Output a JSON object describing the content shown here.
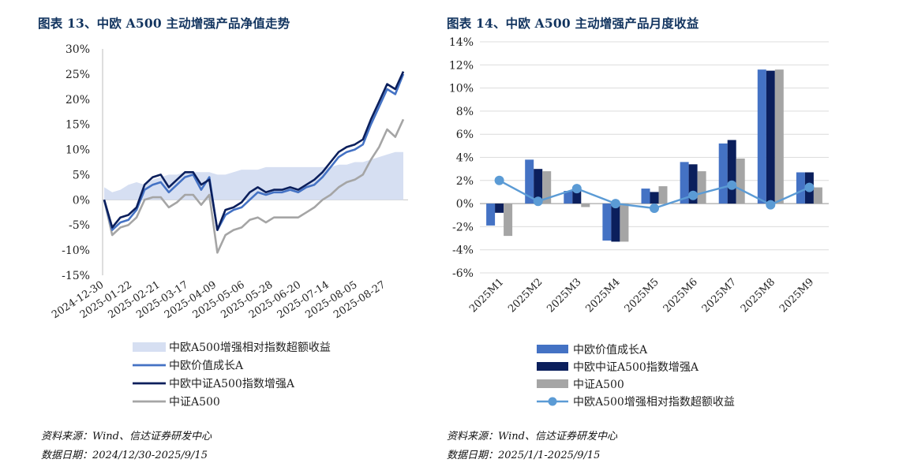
{
  "left_figure": {
    "title": "图表 13、中欧 A500 主动增强产品净值走势",
    "source": "资料来源：Wind、信达证券研发中心",
    "date_range": "数据日期：2024/12/30-2025/9/15"
  },
  "right_figure": {
    "title": "图表 14、中欧 A500 主动增强产品月度收益",
    "source": "资料来源：Wind、信达证券研发中心",
    "date_range": "数据日期：2025/1/1-2025/9/15"
  },
  "colors": {
    "title": "#12345f",
    "growth": "#4472c4",
    "enhanced": "#0b1f5c",
    "index": "#a5a5a5",
    "excess_area": "#d6dff2",
    "excess_line": "#5b9bd5"
  },
  "chart_data": [
    {
      "type": "line",
      "ylim": [
        -15,
        30
      ],
      "yticks": [
        -15,
        -10,
        -5,
        0,
        5,
        10,
        15,
        20,
        25,
        30
      ],
      "ytick_labels": [
        "-15%",
        "-10%",
        "-5%",
        "0%",
        "5%",
        "10%",
        "15%",
        "20%",
        "25%",
        "30%"
      ],
      "xtick_labels": [
        "2024-12-30",
        "2025-01-22",
        "2025-02-21",
        "2025-03-17",
        "2025-04-09",
        "2025-05-06",
        "2025-05-28",
        "2025-06-20",
        "2025-07-14",
        "2025-08-05",
        "2025-08-27"
      ],
      "x": [
        "2024-12-30",
        "2025-01-06",
        "2025-01-13",
        "2025-01-20",
        "2025-01-27",
        "2025-02-05",
        "2025-02-12",
        "2025-02-19",
        "2025-02-26",
        "2025-03-05",
        "2025-03-12",
        "2025-03-19",
        "2025-03-26",
        "2025-04-02",
        "2025-04-07",
        "2025-04-14",
        "2025-04-21",
        "2025-04-28",
        "2025-05-07",
        "2025-05-14",
        "2025-05-21",
        "2025-05-28",
        "2025-06-04",
        "2025-06-11",
        "2025-06-18",
        "2025-06-25",
        "2025-07-02",
        "2025-07-09",
        "2025-07-16",
        "2025-07-23",
        "2025-07-30",
        "2025-08-06",
        "2025-08-13",
        "2025-08-20",
        "2025-08-27",
        "2025-09-03",
        "2025-09-10",
        "2025-09-15"
      ],
      "series": [
        {
          "name": "中欧A500增强相对指数超额收益",
          "kind": "area",
          "values": [
            2.5,
            1.5,
            2,
            3,
            3.5,
            3,
            4,
            4.5,
            5,
            5,
            5.5,
            5.5,
            5.5,
            5.5,
            5,
            5,
            5.5,
            6,
            6,
            6,
            6.5,
            6.5,
            6.5,
            6.5,
            6.5,
            6.5,
            6.5,
            6.5,
            6.5,
            7,
            7,
            7.5,
            7.5,
            8,
            8.5,
            9,
            9.5,
            9.5
          ]
        },
        {
          "name": "中欧价值成长A",
          "kind": "line",
          "values": [
            0,
            -6,
            -4.5,
            -4,
            -2,
            2,
            3,
            3.5,
            1.5,
            3,
            4.5,
            5,
            2,
            4.5,
            -6,
            -3,
            -2,
            -1.5,
            0,
            1.5,
            1,
            1.5,
            1.5,
            2,
            1.5,
            2.5,
            3,
            4.5,
            6.5,
            8.5,
            9.5,
            10,
            11,
            15,
            18.5,
            22,
            21,
            25
          ]
        },
        {
          "name": "中欧中证A500指数增强A",
          "kind": "line",
          "values": [
            0,
            -5.5,
            -3.5,
            -3,
            -1.5,
            3,
            4.5,
            5,
            2.5,
            4,
            5.5,
            5.5,
            3,
            4,
            -6,
            -2,
            -1.5,
            -0.5,
            1.5,
            2.5,
            1.5,
            2,
            2,
            2.5,
            2,
            3,
            4,
            5.5,
            7.5,
            9.5,
            10.5,
            11,
            12,
            16,
            19.5,
            23,
            22,
            25.5
          ]
        },
        {
          "name": "中证A500",
          "kind": "line",
          "values": [
            0,
            -7,
            -5.5,
            -5,
            -3.5,
            0,
            0.5,
            0.5,
            -1.5,
            -0.5,
            1,
            1,
            -1,
            1,
            -10.5,
            -7,
            -6,
            -5.5,
            -4,
            -3.5,
            -4.5,
            -3.5,
            -3.5,
            -3.5,
            -3.5,
            -2.5,
            -1.5,
            0,
            1,
            2.5,
            3.5,
            4,
            5,
            8,
            10.5,
            14,
            12.5,
            16
          ]
        }
      ]
    },
    {
      "type": "bar",
      "ylim": [
        -6,
        14
      ],
      "yticks": [
        -6,
        -4,
        -2,
        0,
        2,
        4,
        6,
        8,
        10,
        12,
        14
      ],
      "ytick_labels": [
        "-6%",
        "-4%",
        "-2%",
        "0%",
        "2%",
        "4%",
        "6%",
        "8%",
        "10%",
        "12%",
        "14%"
      ],
      "categories": [
        "2025M1",
        "2025M2",
        "2025M3",
        "2025M4",
        "2025M5",
        "2025M6",
        "2025M7",
        "2025M8",
        "2025M9"
      ],
      "series": [
        {
          "name": "中欧价值成长A",
          "kind": "bar",
          "values": [
            -1.9,
            3.8,
            1.1,
            -3.2,
            1.3,
            3.6,
            5.2,
            11.6,
            2.7
          ]
        },
        {
          "name": "中欧中证A500指数增强A",
          "kind": "bar",
          "values": [
            -0.8,
            3.0,
            1.1,
            -3.3,
            1.0,
            3.4,
            5.5,
            11.5,
            2.7
          ]
        },
        {
          "name": "中证A500",
          "kind": "bar",
          "values": [
            -2.8,
            2.8,
            -0.3,
            -3.3,
            1.5,
            2.8,
            3.9,
            11.6,
            1.4
          ]
        },
        {
          "name": "中欧A500增强相对指数超额收益",
          "kind": "line",
          "values": [
            2.0,
            0.2,
            1.3,
            0.0,
            -0.4,
            0.7,
            1.6,
            -0.1,
            1.4
          ]
        }
      ]
    }
  ]
}
